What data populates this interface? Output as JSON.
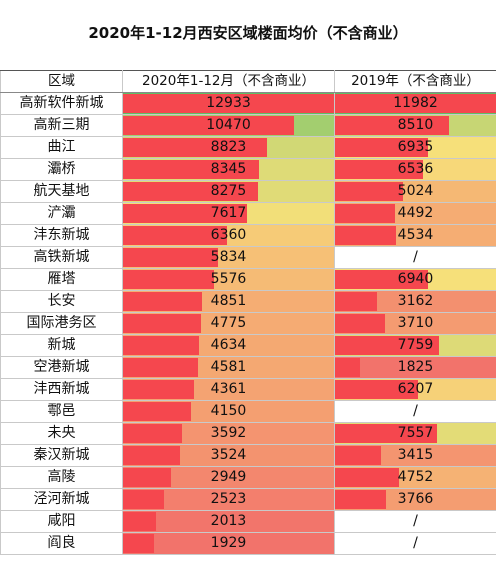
{
  "title": "2020年1-12月西安区域楼面均价（不含商业）",
  "headers": {
    "region": "区域",
    "col2020": "2020年1-12月（不含商业）",
    "col2019": "2019年（不含商业）"
  },
  "rows": [
    {
      "region": "高新软件新城",
      "v2020": "12933",
      "v2019": "11982"
    },
    {
      "region": "高新三期",
      "v2020": "10470",
      "v2019": "8510"
    },
    {
      "region": "曲江",
      "v2020": "8823",
      "v2019": "6935"
    },
    {
      "region": "灞桥",
      "v2020": "8345",
      "v2019": "6536"
    },
    {
      "region": "航天基地",
      "v2020": "8275",
      "v2019": "5024"
    },
    {
      "region": "浐灞",
      "v2020": "7617",
      "v2019": "4492"
    },
    {
      "region": "沣东新城",
      "v2020": "6360",
      "v2019": "4534"
    },
    {
      "region": "高铁新城",
      "v2020": "5834",
      "v2019": "/"
    },
    {
      "region": "雁塔",
      "v2020": "5576",
      "v2019": "6940"
    },
    {
      "region": "长安",
      "v2020": "4851",
      "v2019": "3162"
    },
    {
      "region": "国际港务区",
      "v2020": "4775",
      "v2019": "3710"
    },
    {
      "region": "新城",
      "v2020": "4634",
      "v2019": "7759"
    },
    {
      "region": "空港新城",
      "v2020": "4581",
      "v2019": "1825"
    },
    {
      "region": "沣西新城",
      "v2020": "4361",
      "v2019": "6207"
    },
    {
      "region": "鄠邑",
      "v2020": "4150",
      "v2019": "/"
    },
    {
      "region": "未央",
      "v2020": "3592",
      "v2019": "7557"
    },
    {
      "region": "秦汉新城",
      "v2020": "3524",
      "v2019": "3415"
    },
    {
      "region": "高陵",
      "v2020": "2949",
      "v2019": "4752"
    },
    {
      "region": "泾河新城",
      "v2020": "2523",
      "v2019": "3766"
    },
    {
      "region": "咸阳",
      "v2020": "2013",
      "v2019": "/"
    },
    {
      "region": "阎良",
      "v2020": "1929",
      "v2019": "/"
    }
  ],
  "colors": {
    "bar": "#f5474e",
    "scale_high": "#5fbf66",
    "scale_mid": "#f7e07a",
    "scale_low": "#f2736b",
    "grid": "#c9c9c9"
  }
}
